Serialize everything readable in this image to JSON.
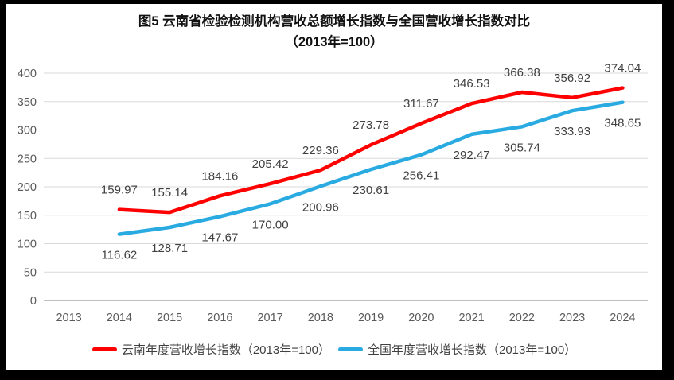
{
  "title": {
    "line1": "图5  云南省检验检测机构营收总额增长指数与全国营收增长指数对比",
    "line2": "（2013年=100）"
  },
  "chart_data": {
    "type": "line",
    "categories": [
      "2013",
      "2014",
      "2015",
      "2016",
      "2017",
      "2018",
      "2019",
      "2020",
      "2021",
      "2022",
      "2023",
      "2024"
    ],
    "series": [
      {
        "name": "云南年度营收增长指数（2013年=100）",
        "color": "#FF0000",
        "values": [
          null,
          159.97,
          155.14,
          184.16,
          205.42,
          229.36,
          273.78,
          311.67,
          346.53,
          366.38,
          356.92,
          374.04
        ],
        "label_position": "above"
      },
      {
        "name": "全国年度营收增长指数（2013年=100）",
        "color": "#29ABE2",
        "values": [
          null,
          116.62,
          128.71,
          147.67,
          170.0,
          200.96,
          230.61,
          256.41,
          292.47,
          305.74,
          333.93,
          348.65
        ],
        "label_position": "below"
      }
    ],
    "ylim": [
      0,
      400
    ],
    "ytick_step": 50,
    "grid": true,
    "legend_position": "bottom",
    "styles": {
      "gridline_color": "#D9D9D9",
      "zero_line_color": "#BFBFBF",
      "axis_label_color": "#595959",
      "data_label_color": "#404040",
      "line_width": 4.5
    }
  }
}
